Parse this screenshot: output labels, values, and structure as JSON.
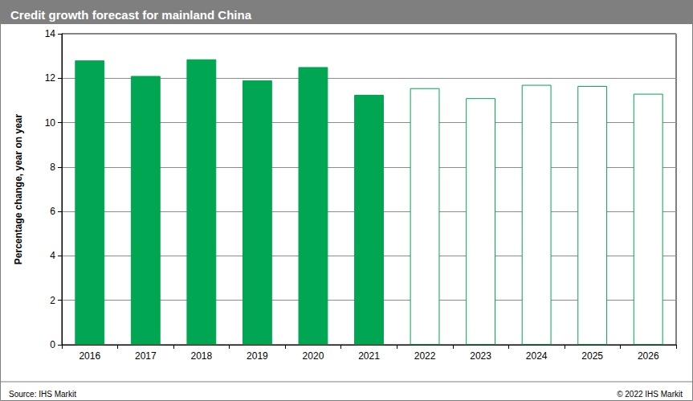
{
  "chart_data": {
    "type": "bar",
    "title": "Credit growth forecast for mainland China",
    "y_label": "Percentage change, year on year",
    "categories": [
      "2016",
      "2017",
      "2018",
      "2019",
      "2020",
      "2021",
      "2022",
      "2023",
      "2024",
      "2025",
      "2026"
    ],
    "values": [
      12.8,
      12.1,
      12.85,
      11.9,
      12.5,
      11.25,
      11.55,
      11.1,
      11.7,
      11.65,
      11.3
    ],
    "color": "#00a651",
    "colors": [
      "#00a651",
      "#00a651",
      "#00a651",
      "#00a651",
      "#00a651",
      "#00a651",
      "#ffffff",
      "#ffffff",
      "#ffffff",
      "#ffffff",
      "#ffffff"
    ],
    "ylim": [
      0,
      14
    ],
    "yticks": [
      0,
      2,
      4,
      6,
      8,
      10,
      12,
      14
    ],
    "grid": true,
    "source": "Source: IHS Markit",
    "copyright": "© 2022 IHS Markit"
  }
}
